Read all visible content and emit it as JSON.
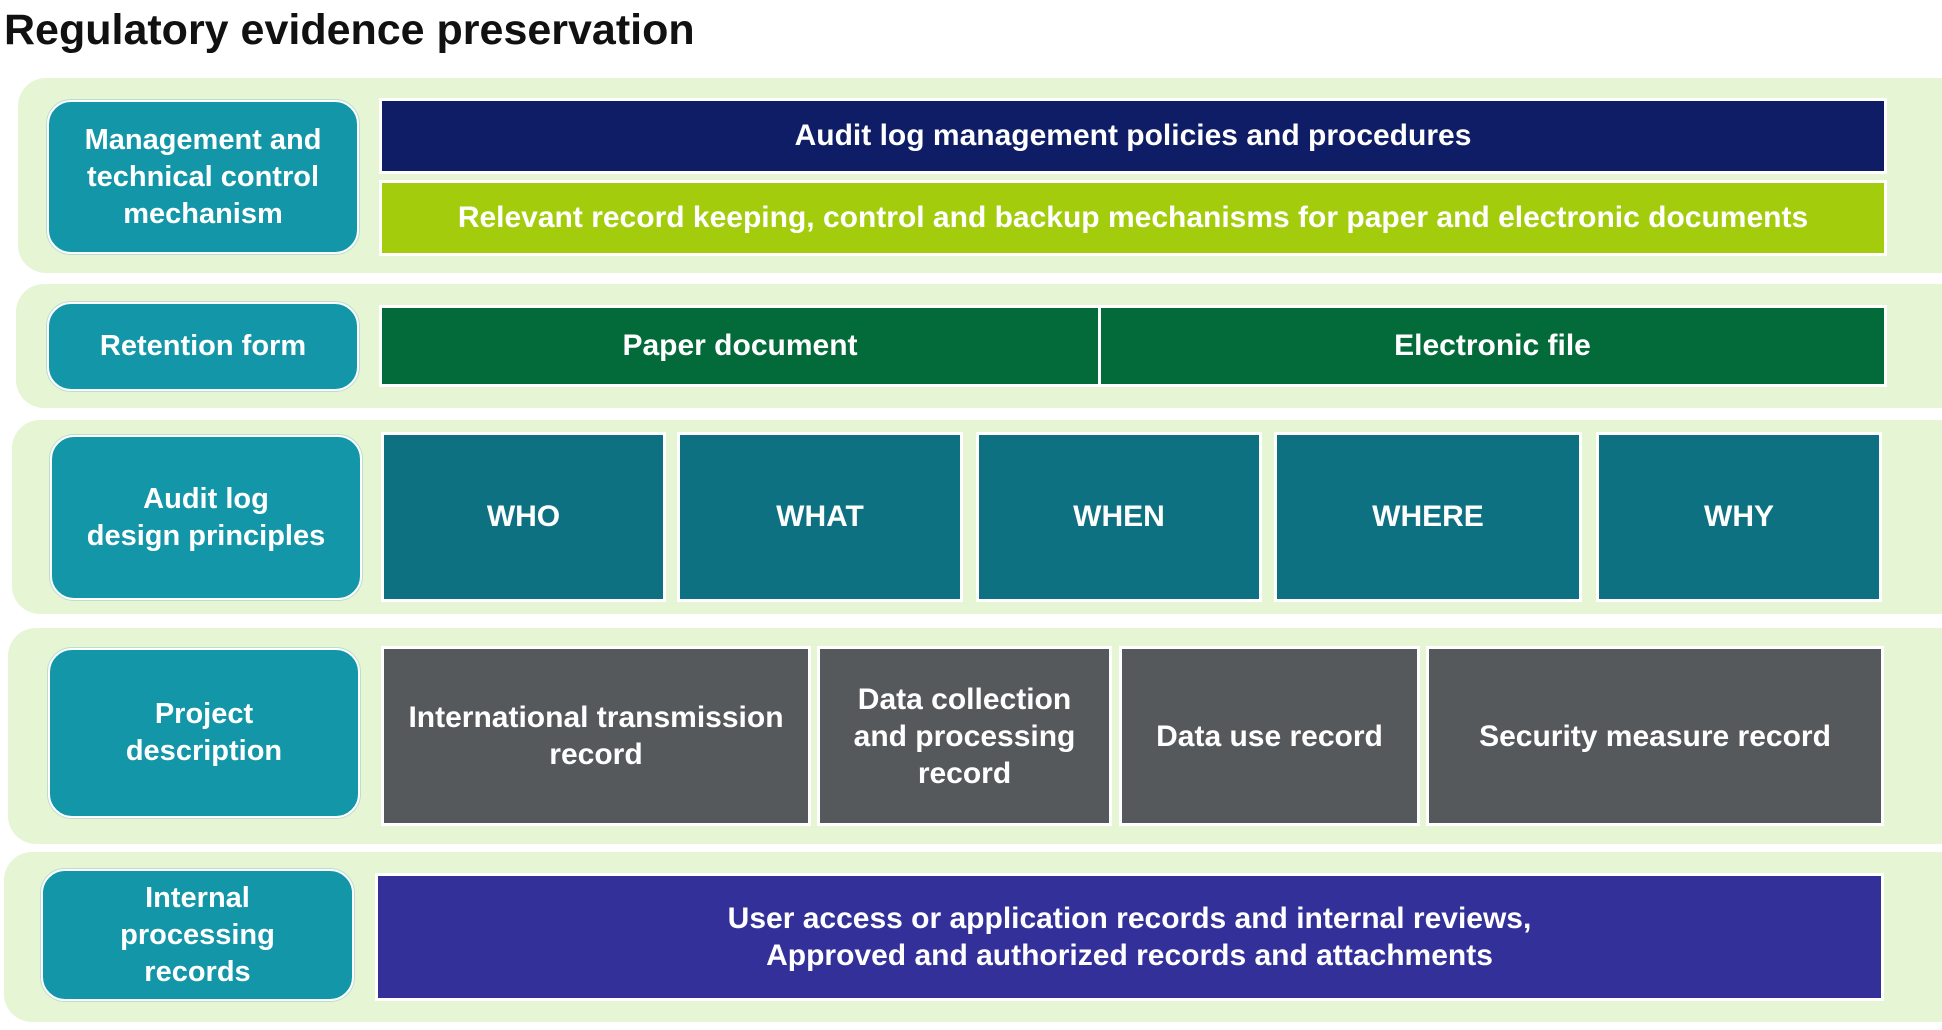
{
  "title": "Regulatory evidence preservation",
  "colors": {
    "band": "#e6f5d3",
    "label": "#1296a8",
    "navy": "#0e1d66",
    "lime": "#a3cd0c",
    "green": "#036b3a",
    "teal": "#0d7181",
    "gray": "#56595c",
    "purple": "#33309a"
  },
  "rows": [
    {
      "label": "Management and\ntechnical control\nmechanism",
      "cells": [
        "Audit log management policies and procedures",
        "Relevant record keeping, control and backup mechanisms for paper and electronic documents"
      ]
    },
    {
      "label": "Retention form",
      "cells": [
        "Paper document",
        "Electronic file"
      ]
    },
    {
      "label": "Audit log\ndesign principles",
      "cells": [
        "WHO",
        "WHAT",
        "WHEN",
        "WHERE",
        "WHY"
      ]
    },
    {
      "label": "Project\ndescription",
      "cells": [
        "International transmission\nrecord",
        "Data collection\nand processing\nrecord",
        "Data use record",
        "Security measure record"
      ]
    },
    {
      "label": "Internal\nprocessing\nrecords",
      "cells": [
        "User access or application records and internal reviews,\nApproved and authorized records and attachments"
      ]
    }
  ]
}
